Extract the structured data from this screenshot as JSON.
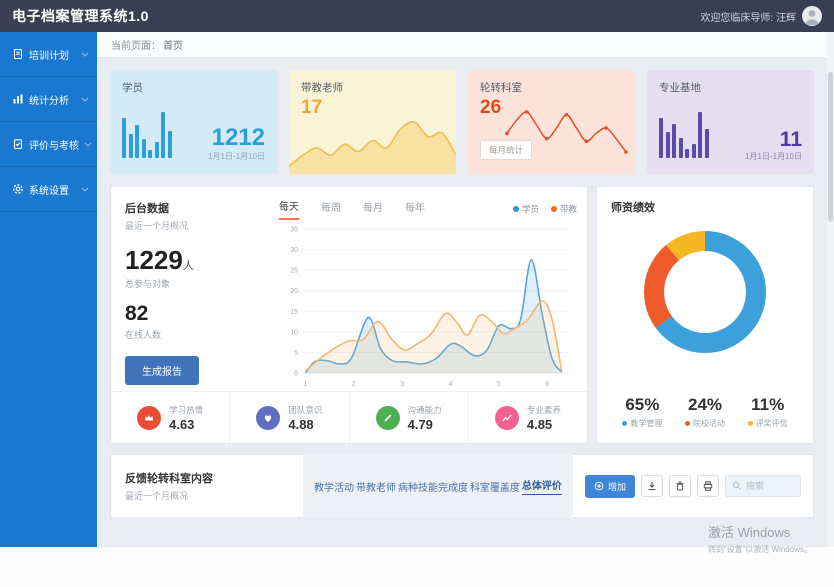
{
  "header": {
    "title": "电子档案管理系统1.0",
    "welcome": "欢迎您临床导师: 汪辉"
  },
  "sidebar": {
    "items": [
      {
        "label": "培训计划",
        "icon": "file-icon"
      },
      {
        "label": "统计分析",
        "icon": "chart-icon"
      },
      {
        "label": "评价与考核",
        "icon": "clipboard-icon"
      },
      {
        "label": "系统设置",
        "icon": "gear-icon"
      }
    ]
  },
  "breadcrumb": {
    "prefix": "当前页面：",
    "page": "首页"
  },
  "stat_cards": [
    {
      "title": "学员",
      "value": "1212",
      "caption": "1月1日-1月10日",
      "accent": "#2b9fd9",
      "bg": "#d5eaf7"
    },
    {
      "title": "带教老师",
      "value": "17",
      "accent": "#f0a732",
      "bg": "#fbf3d5"
    },
    {
      "title": "轮转科室",
      "value": "26",
      "button": "每月统计",
      "accent": "#e64a23",
      "bg": "#fbe3da"
    },
    {
      "title": "专业基地",
      "value": "11",
      "caption": "1月1日-1月10日",
      "accent": "#4b3aa0",
      "bg": "#e4def0"
    }
  ],
  "main_panel": {
    "title": "后台数据",
    "subtitle": "最近一个月概况",
    "stat1_value": "1229",
    "stat1_unit": "人",
    "stat1_label": "总参与对象",
    "stat2_value": "82",
    "stat2_label": "在线人数",
    "report_button": "生成报告",
    "tabs": [
      "每天",
      "每周",
      "每月",
      "每年"
    ],
    "active_tab": "每天",
    "legend": [
      {
        "label": "学员",
        "color": "#2d8fd8"
      },
      {
        "label": "带教",
        "color": "#f4672f"
      }
    ],
    "metrics": [
      {
        "label": "学习热情",
        "value": "4.63",
        "icon": "crown-icon",
        "color": "#e94c33"
      },
      {
        "label": "团队意识",
        "value": "4.88",
        "icon": "heart-icon",
        "color": "#5e6fc0"
      },
      {
        "label": "沟通能力",
        "value": "4.79",
        "icon": "pencil-icon",
        "color": "#4caf50"
      },
      {
        "label": "专业素养",
        "value": "4.85",
        "icon": "trend-icon",
        "color": "#f06292"
      }
    ]
  },
  "right_panel": {
    "title": "师资绩效",
    "stats": [
      {
        "value": "65%",
        "label": "教学管理",
        "color": "#3da0db"
      },
      {
        "value": "24%",
        "label": "院校活动",
        "color": "#ef5b2b"
      },
      {
        "value": "11%",
        "label": "评奖评优",
        "color": "#f5b824"
      }
    ]
  },
  "bottom_panel": {
    "title": "反馈轮转科室内容",
    "subtitle": "最近一个月概况",
    "links": [
      "教学活动",
      "带教老师",
      "病种技能完成度",
      "科室覆盖度",
      "总体评价"
    ],
    "active_link": "总体评价",
    "add_button": "增加",
    "search_placeholder": "搜索"
  },
  "watermark": {
    "line1": "激活 Windows",
    "line2": "转到“设置”以激活 Windows。"
  },
  "chart_data": [
    {
      "id": "overview-line",
      "type": "line",
      "title": "后台数据 最近一个月概况",
      "xlim": [
        0.95,
        6.45
      ],
      "ylim": [
        0,
        35
      ],
      "x_ticks": [
        1,
        2,
        3,
        4,
        5,
        6
      ],
      "y_ticks": [
        0,
        5,
        10,
        15,
        20,
        25,
        30,
        35
      ],
      "grid": true,
      "legend_position": "top-right",
      "series": [
        {
          "name": "学员",
          "color": "#53a8de",
          "points": [
            [
              1,
              0
            ],
            [
              1.2,
              2.8
            ],
            [
              1.45,
              3
            ],
            [
              1.7,
              2.2
            ],
            [
              1.95,
              3.6
            ],
            [
              2.3,
              13.5
            ],
            [
              2.55,
              6
            ],
            [
              2.8,
              3
            ],
            [
              3.1,
              2.7
            ],
            [
              3.4,
              2.2
            ],
            [
              3.7,
              3.5
            ],
            [
              4,
              7
            ],
            [
              4.2,
              6.6
            ],
            [
              4.5,
              4.2
            ],
            [
              4.75,
              5.5
            ],
            [
              5,
              11.5
            ],
            [
              5.25,
              10.8
            ],
            [
              5.45,
              13
            ],
            [
              5.67,
              27.5
            ],
            [
              5.9,
              14
            ],
            [
              6.1,
              3.5
            ],
            [
              6.3,
              0.3
            ]
          ]
        },
        {
          "name": "带教",
          "color": "#f2b873",
          "points": [
            [
              1,
              0.5
            ],
            [
              1.3,
              3.5
            ],
            [
              1.6,
              6
            ],
            [
              1.9,
              7.8
            ],
            [
              2.2,
              8.2
            ],
            [
              2.5,
              12.5
            ],
            [
              2.8,
              8
            ],
            [
              3.05,
              5.6
            ],
            [
              3.3,
              7
            ],
            [
              3.6,
              9.5
            ],
            [
              3.9,
              14.5
            ],
            [
              4.15,
              12
            ],
            [
              4.35,
              9.2
            ],
            [
              4.6,
              14
            ],
            [
              4.85,
              12.5
            ],
            [
              5.1,
              9.6
            ],
            [
              5.35,
              11
            ],
            [
              5.6,
              13
            ],
            [
              5.9,
              17.5
            ],
            [
              6.1,
              13
            ],
            [
              6.3,
              0.5
            ]
          ]
        }
      ]
    },
    {
      "id": "performance-donut",
      "type": "pie",
      "title": "师资绩效",
      "labels": [
        "教学管理",
        "院校活动",
        "评奖评优"
      ],
      "values": [
        65,
        24,
        11
      ],
      "colors": [
        "#3da0db",
        "#ef5b2b",
        "#f5b824"
      ],
      "inner_radius_pct": 67
    },
    {
      "id": "students-mini",
      "type": "bar",
      "values": [
        15,
        9,
        12,
        7,
        3,
        6,
        17,
        10
      ],
      "color": "#2f9fd8"
    },
    {
      "id": "teachers-mini",
      "type": "area",
      "values": [
        1,
        4,
        6,
        4,
        7,
        5,
        8,
        6,
        11,
        13,
        9,
        10,
        4
      ],
      "color": "#eebf4e",
      "fill": "#f6dd9a"
    },
    {
      "id": "rotation-mini",
      "type": "line",
      "values": [
        5,
        7.5,
        9,
        6.5,
        4,
        6,
        8.5,
        6,
        3.5,
        5,
        6,
        4,
        1.5
      ],
      "color": "#e8502c",
      "markers": true
    },
    {
      "id": "bases-mini",
      "type": "bar",
      "values": [
        14,
        9,
        12,
        7,
        3,
        5,
        16,
        10
      ],
      "color": "#5b4ba8"
    }
  ]
}
